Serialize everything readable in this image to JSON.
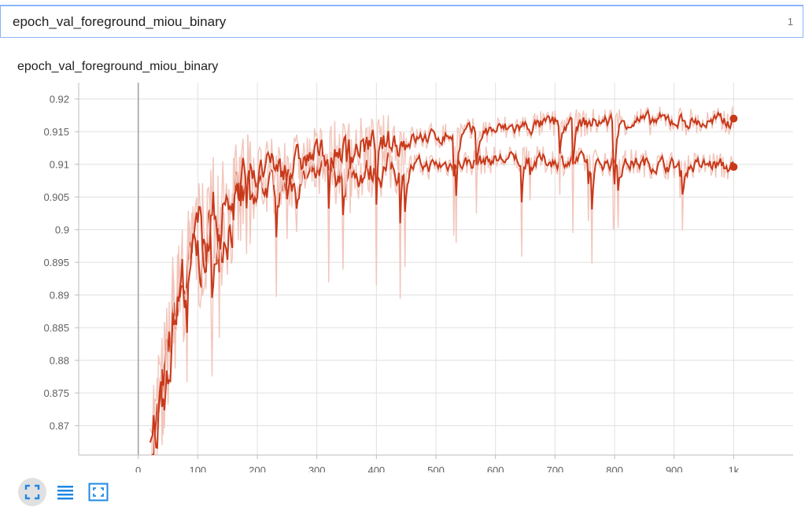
{
  "search": {
    "value": "epoch_val_foreground_miou_binary",
    "count": "1"
  },
  "card": {
    "title": "epoch_val_foreground_miou_binary"
  },
  "toolbar": {
    "buttons": [
      {
        "icon": "fit-domain-icon",
        "active": true
      },
      {
        "icon": "list-icon",
        "active": false
      },
      {
        "icon": "expand-icon",
        "active": false
      }
    ]
  },
  "colors": {
    "main_line": "#c8391a",
    "raw_line": "#f2c5bb",
    "accent": "#1e88e5",
    "grid": "#e0e0e0"
  },
  "chart_data": {
    "type": "line",
    "title": "epoch_val_foreground_miou_binary",
    "xlabel": "",
    "ylabel": "",
    "xlim": [
      -100,
      1100
    ],
    "ylim": [
      0.8655,
      0.9225
    ],
    "x_ticks": [
      0,
      100,
      200,
      300,
      400,
      500,
      600,
      700,
      800,
      900,
      1000
    ],
    "x_tick_labels": [
      "0",
      "100",
      "200",
      "300",
      "400",
      "500",
      "600",
      "700",
      "800",
      "900",
      "1k"
    ],
    "y_ticks": [
      0.87,
      0.875,
      0.88,
      0.885,
      0.89,
      0.895,
      0.9,
      0.905,
      0.91,
      0.915,
      0.92
    ],
    "y_tick_labels": [
      "0.87",
      "0.875",
      "0.88",
      "0.885",
      "0.89",
      "0.895",
      "0.9",
      "0.905",
      "0.91",
      "0.915",
      "0.92"
    ],
    "grid": true,
    "series": [
      {
        "x": [
          20,
          40,
          60,
          80,
          100,
          120,
          140,
          160,
          180,
          185,
          200,
          225,
          250,
          275,
          300,
          350,
          400,
          450,
          500,
          550,
          600,
          620,
          650,
          700,
          750,
          800,
          850,
          900,
          950,
          960,
          1000
        ],
        "values": [
          0.866,
          0.876,
          0.888,
          0.894,
          0.897,
          0.9,
          0.902,
          0.904,
          0.905,
          0.906,
          0.907,
          0.907,
          0.9075,
          0.908,
          0.9085,
          0.909,
          0.9095,
          0.91,
          0.91,
          0.9105,
          0.911,
          0.911,
          0.9108,
          0.9108,
          0.9106,
          0.9105,
          0.9104,
          0.91,
          0.91,
          0.9102,
          0.9096
        ],
        "last": 0.9096
      },
      {
        "x": [
          20,
          40,
          60,
          80,
          100,
          120,
          140,
          160,
          180,
          200,
          225,
          250,
          275,
          300,
          350,
          400,
          450,
          500,
          550,
          600,
          650,
          700,
          750,
          800,
          850,
          900,
          950,
          1000
        ],
        "values": [
          0.866,
          0.878,
          0.889,
          0.895,
          0.899,
          0.902,
          0.904,
          0.906,
          0.907,
          0.909,
          0.91,
          0.9105,
          0.911,
          0.912,
          0.913,
          0.9135,
          0.914,
          0.9145,
          0.915,
          0.9155,
          0.916,
          0.9165,
          0.9165,
          0.917,
          0.9168,
          0.917,
          0.9165,
          0.917
        ],
        "last": 0.917
      }
    ]
  }
}
